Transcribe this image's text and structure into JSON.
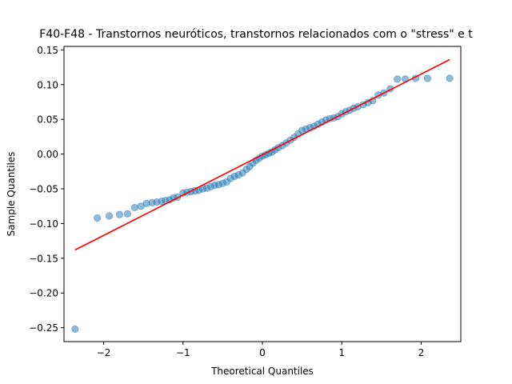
{
  "chart_data": {
    "type": "scatter",
    "title": "F40-F48 - Transtornos neuróticos, transtornos relacionados com o \"stress\" e t",
    "xlabel": "Theoretical Quantiles",
    "ylabel": "Sample Quantiles",
    "xlim": [
      -2.5,
      2.5
    ],
    "ylim": [
      -0.27,
      0.155
    ],
    "xticks": [
      -2,
      -1,
      0,
      1,
      2
    ],
    "xtick_labels": [
      "−2",
      "−1",
      "0",
      "1",
      "2"
    ],
    "yticks": [
      -0.25,
      -0.2,
      -0.15,
      -0.1,
      -0.05,
      0.0,
      0.05,
      0.1,
      0.15
    ],
    "ytick_labels": [
      "−0.25",
      "−0.20",
      "−0.15",
      "−0.10",
      "−0.05",
      "0.00",
      "0.05",
      "0.10",
      "0.15"
    ],
    "grid": false,
    "series": [
      {
        "name": "sample quantiles",
        "color": "#1f77b4",
        "opacity": 0.5,
        "points": [
          [
            -2.36,
            -0.252
          ],
          [
            -2.08,
            -0.092
          ],
          [
            -1.93,
            -0.089
          ],
          [
            -1.8,
            -0.087
          ],
          [
            -1.7,
            -0.086
          ],
          [
            -1.61,
            -0.077
          ],
          [
            -1.53,
            -0.075
          ],
          [
            -1.46,
            -0.071
          ],
          [
            -1.39,
            -0.07
          ],
          [
            -1.33,
            -0.069
          ],
          [
            -1.27,
            -0.068
          ],
          [
            -1.22,
            -0.067
          ],
          [
            -1.17,
            -0.066
          ],
          [
            -1.12,
            -0.063
          ],
          [
            -1.07,
            -0.062
          ],
          [
            -1.0,
            -0.056
          ],
          [
            -0.95,
            -0.055
          ],
          [
            -0.9,
            -0.054
          ],
          [
            -0.85,
            -0.053
          ],
          [
            -0.8,
            -0.052
          ],
          [
            -0.75,
            -0.05
          ],
          [
            -0.7,
            -0.049
          ],
          [
            -0.65,
            -0.047
          ],
          [
            -0.6,
            -0.045
          ],
          [
            -0.55,
            -0.044
          ],
          [
            -0.5,
            -0.042
          ],
          [
            -0.45,
            -0.04
          ],
          [
            -0.4,
            -0.035
          ],
          [
            -0.35,
            -0.032
          ],
          [
            -0.3,
            -0.03
          ],
          [
            -0.25,
            -0.027
          ],
          [
            -0.2,
            -0.022
          ],
          [
            -0.16,
            -0.018
          ],
          [
            -0.12,
            -0.013
          ],
          [
            -0.08,
            -0.009
          ],
          [
            -0.04,
            -0.006
          ],
          [
            0.0,
            -0.003
          ],
          [
            0.04,
            -0.001
          ],
          [
            0.08,
            0.001
          ],
          [
            0.12,
            0.003
          ],
          [
            0.16,
            0.006
          ],
          [
            0.2,
            0.009
          ],
          [
            0.25,
            0.012
          ],
          [
            0.3,
            0.016
          ],
          [
            0.35,
            0.02
          ],
          [
            0.4,
            0.024
          ],
          [
            0.45,
            0.029
          ],
          [
            0.5,
            0.034
          ],
          [
            0.55,
            0.036
          ],
          [
            0.6,
            0.038
          ],
          [
            0.65,
            0.04
          ],
          [
            0.7,
            0.043
          ],
          [
            0.75,
            0.046
          ],
          [
            0.8,
            0.049
          ],
          [
            0.85,
            0.051
          ],
          [
            0.9,
            0.052
          ],
          [
            0.95,
            0.054
          ],
          [
            1.0,
            0.058
          ],
          [
            1.05,
            0.061
          ],
          [
            1.1,
            0.063
          ],
          [
            1.15,
            0.066
          ],
          [
            1.2,
            0.068
          ],
          [
            1.27,
            0.071
          ],
          [
            1.33,
            0.074
          ],
          [
            1.39,
            0.077
          ],
          [
            1.46,
            0.085
          ],
          [
            1.53,
            0.088
          ],
          [
            1.61,
            0.094
          ],
          [
            1.7,
            0.108
          ],
          [
            1.8,
            0.108
          ],
          [
            1.93,
            0.109
          ],
          [
            2.08,
            0.109
          ],
          [
            2.36,
            0.109
          ]
        ]
      }
    ],
    "reference_line": {
      "name": "fit line",
      "color": "#ff0000",
      "x": [
        -2.36,
        2.36
      ],
      "y": [
        -0.138,
        0.136
      ]
    }
  }
}
